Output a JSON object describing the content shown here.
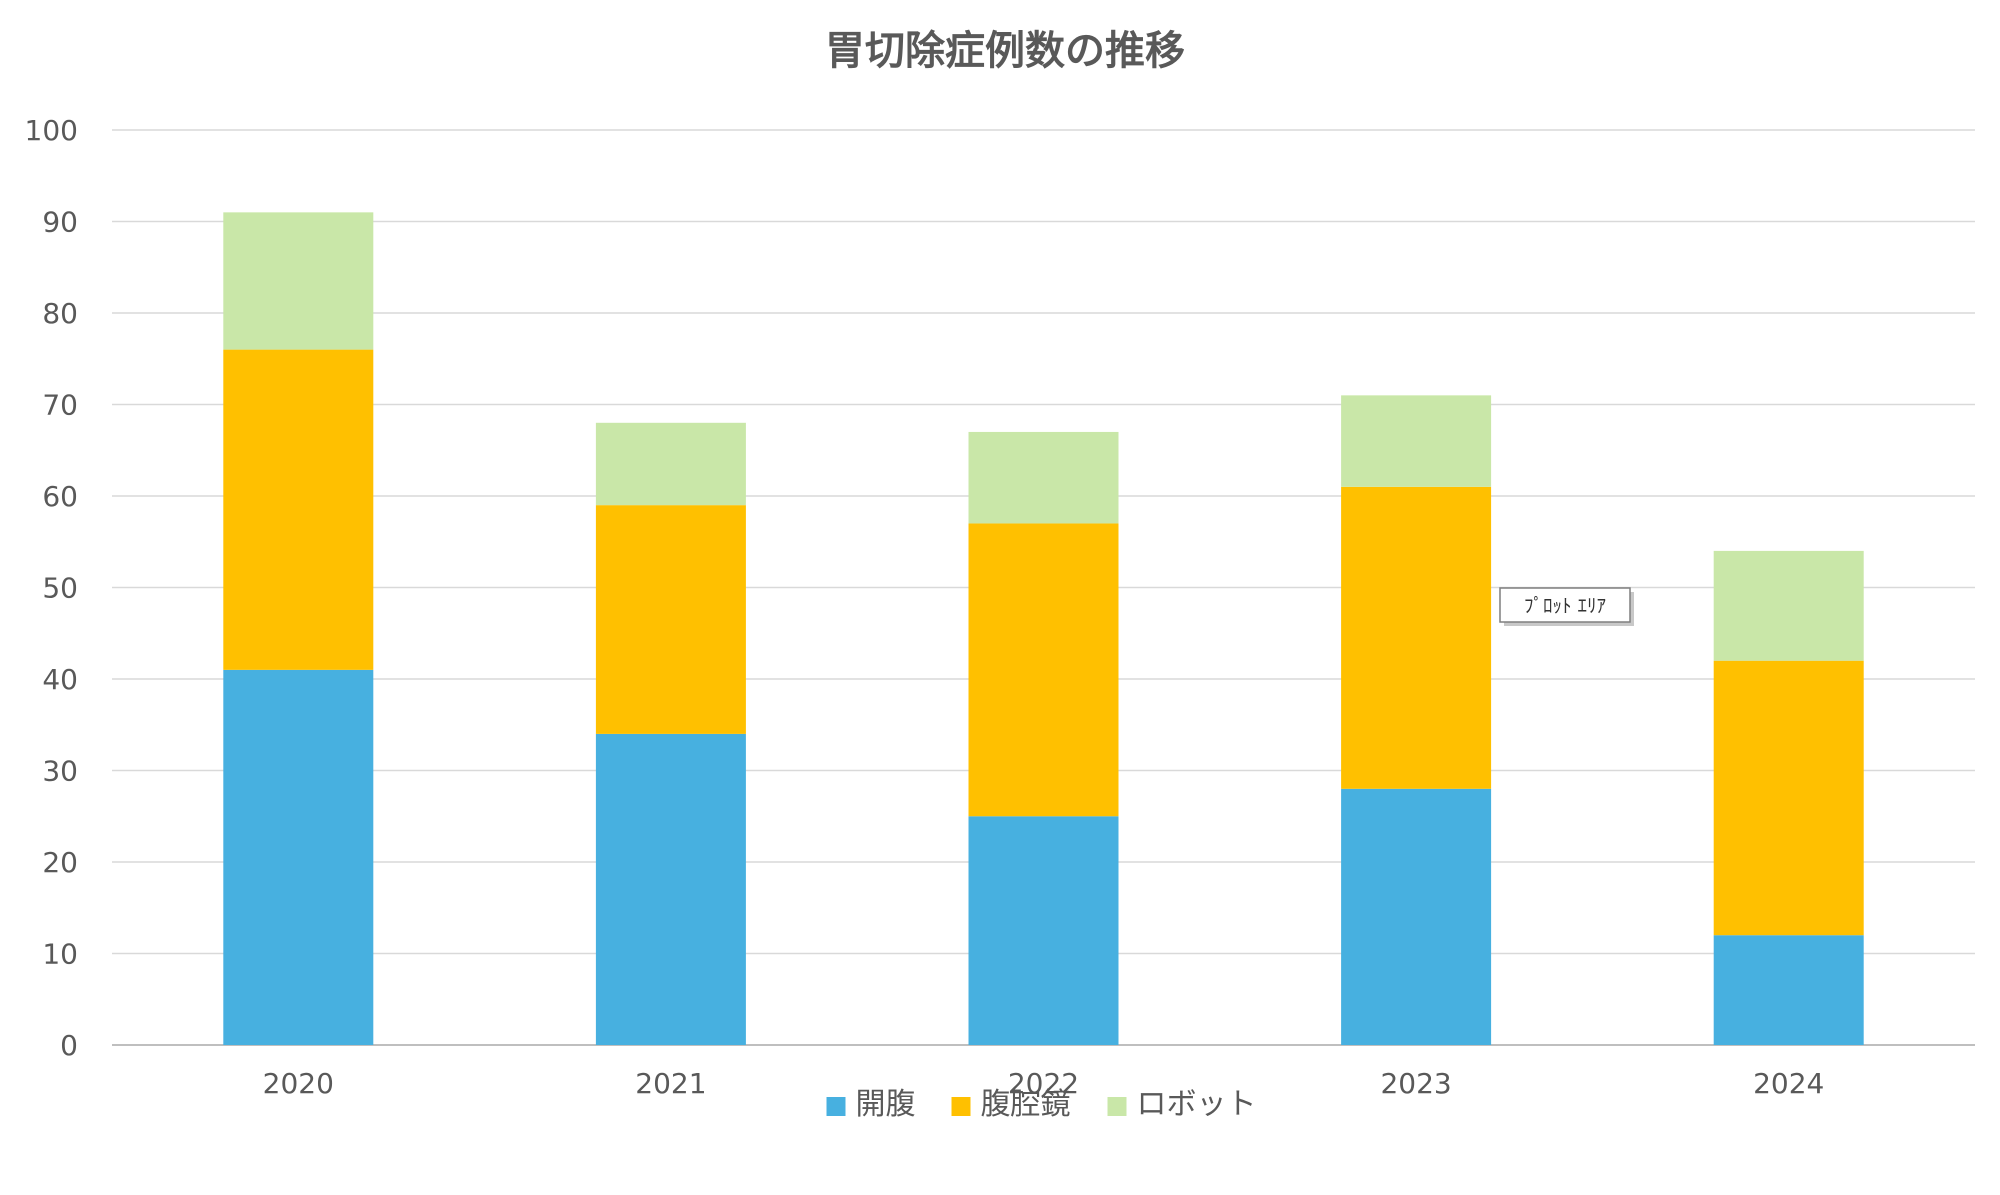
{
  "chart_data": {
    "type": "bar",
    "stacked": true,
    "title": "胃切除症例数の推移",
    "categories": [
      "2020",
      "2021",
      "2022",
      "2023",
      "2024"
    ],
    "series": [
      {
        "name": "開腹",
        "color": "#47B0E0",
        "values": [
          41,
          34,
          25,
          28,
          12
        ]
      },
      {
        "name": "腹腔鏡",
        "color": "#FFC000",
        "values": [
          35,
          25,
          32,
          33,
          30
        ]
      },
      {
        "name": "ロボット",
        "color": "#C9E7A8",
        "values": [
          15,
          9,
          10,
          10,
          12
        ]
      }
    ],
    "ylim": [
      0,
      100
    ],
    "yticks": [
      0,
      10,
      20,
      30,
      40,
      50,
      60,
      70,
      80,
      90,
      100
    ],
    "grid": true,
    "legend_position": "bottom"
  },
  "tooltip": {
    "text": "ﾌﾟﾛｯﾄ ｴﾘｱ"
  }
}
